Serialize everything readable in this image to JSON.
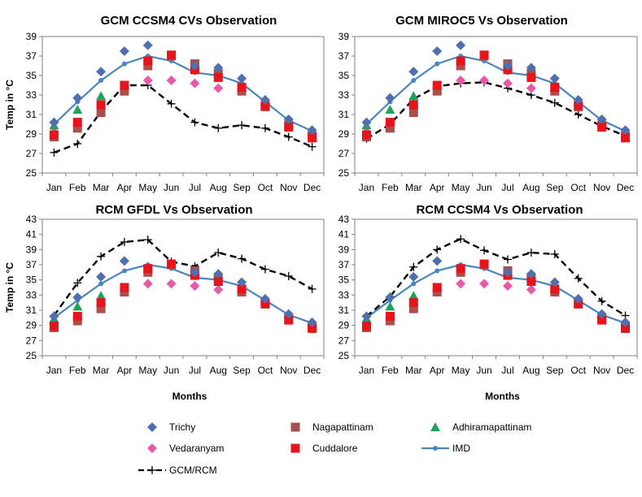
{
  "chart_data": [
    {
      "type": "line",
      "title": "GCM CCSM4  CVs Observation",
      "xlabel": "",
      "ylabel": "Temp in °C",
      "ylim": [
        25,
        39
      ],
      "yticks": [
        25,
        27,
        29,
        31,
        33,
        35,
        37,
        39
      ],
      "grid": false,
      "categories": [
        "Jan",
        "Feb",
        "Mar",
        "Apr",
        "May",
        "Jun",
        "Jul",
        "Aug",
        "Sep",
        "Oct",
        "Nov",
        "Dec"
      ],
      "series": [
        {
          "name": "Trichy",
          "values": [
            30.2,
            32.7,
            35.4,
            37.5,
            38.1,
            null,
            36.0,
            35.8,
            34.7,
            32.5,
            30.5,
            29.4
          ]
        },
        {
          "name": "Nagapattinam",
          "values": [
            28.7,
            29.6,
            31.2,
            33.4,
            36.0,
            37.0,
            36.2,
            35.2,
            33.4,
            31.8,
            29.9,
            28.8
          ]
        },
        {
          "name": "Adhiramapattinam",
          "values": [
            29.9,
            31.5,
            32.9,
            null,
            null,
            null,
            null,
            null,
            null,
            null,
            null,
            null
          ]
        },
        {
          "name": "Vedaranyam",
          "values": [
            29.2,
            30.0,
            31.8,
            33.6,
            34.5,
            34.5,
            34.2,
            33.7,
            33.5,
            32.0,
            30.0,
            29.0
          ]
        },
        {
          "name": "Cuddalore",
          "values": [
            28.9,
            30.2,
            32.0,
            34.0,
            36.5,
            37.1,
            35.6,
            34.8,
            33.8,
            31.9,
            29.7,
            28.6
          ]
        },
        {
          "name": "IMD",
          "values": [
            30.0,
            32.3,
            34.5,
            36.2,
            37.0,
            36.5,
            35.3,
            35.0,
            34.2,
            32.3,
            30.4,
            29.3
          ]
        },
        {
          "name": "GCM/RCM",
          "values": [
            27.1,
            28.0,
            31.3,
            34.0,
            34.0,
            32.1,
            30.2,
            29.6,
            29.9,
            29.6,
            28.7,
            27.7
          ]
        }
      ]
    },
    {
      "type": "line",
      "title": "GCM MIROC5 Vs Observation",
      "xlabel": "",
      "ylabel": "",
      "ylim": [
        25,
        39
      ],
      "yticks": [
        25,
        27,
        29,
        31,
        33,
        35,
        37,
        39
      ],
      "grid": false,
      "categories": [
        "Jan",
        "Feb",
        "Mar",
        "Apr",
        "May",
        "Jun",
        "Jul",
        "Aug",
        "Sep",
        "Oct",
        "Nov",
        "Dec"
      ],
      "series": [
        {
          "name": "Trichy",
          "values": [
            30.2,
            32.7,
            35.4,
            37.5,
            38.1,
            null,
            36.0,
            35.8,
            34.7,
            32.5,
            30.5,
            29.4
          ]
        },
        {
          "name": "Nagapattinam",
          "values": [
            28.7,
            29.6,
            31.2,
            33.4,
            36.0,
            37.0,
            36.2,
            35.2,
            33.4,
            31.8,
            29.9,
            28.8
          ]
        },
        {
          "name": "Adhiramapattinam",
          "values": [
            29.9,
            31.5,
            32.9,
            null,
            null,
            null,
            null,
            null,
            null,
            null,
            null,
            null
          ]
        },
        {
          "name": "Vedaranyam",
          "values": [
            29.2,
            30.0,
            31.8,
            33.6,
            34.5,
            34.5,
            34.2,
            33.7,
            33.5,
            32.0,
            30.0,
            29.0
          ]
        },
        {
          "name": "Cuddalore",
          "values": [
            28.9,
            30.2,
            32.0,
            34.0,
            36.5,
            37.1,
            35.6,
            34.8,
            33.8,
            31.9,
            29.7,
            28.6
          ]
        },
        {
          "name": "IMD",
          "values": [
            30.0,
            32.3,
            34.5,
            36.2,
            37.0,
            36.5,
            35.3,
            35.0,
            34.2,
            32.3,
            30.4,
            29.3
          ]
        },
        {
          "name": "GCM/RCM",
          "values": [
            28.5,
            30.0,
            32.6,
            33.9,
            34.2,
            34.3,
            33.7,
            33.0,
            32.2,
            31.0,
            29.8,
            28.8
          ]
        }
      ]
    },
    {
      "type": "line",
      "title": "RCM  GFDL Vs Observation",
      "xlabel": "Months",
      "ylabel": "Temp in °C",
      "ylim": [
        25,
        43
      ],
      "yticks": [
        25,
        27,
        29,
        31,
        33,
        35,
        37,
        39,
        41,
        43
      ],
      "grid": false,
      "categories": [
        "Jan",
        "Feb",
        "Mar",
        "Apr",
        "May",
        "Jun",
        "Jul",
        "Aug",
        "Sep",
        "Oct",
        "Nov",
        "Dec"
      ],
      "series": [
        {
          "name": "Trichy",
          "values": [
            30.2,
            32.7,
            35.4,
            37.5,
            null,
            null,
            36.0,
            35.8,
            34.7,
            32.5,
            30.5,
            29.4
          ]
        },
        {
          "name": "Nagapattinam",
          "values": [
            28.7,
            29.6,
            31.2,
            33.4,
            36.0,
            37.0,
            36.2,
            35.2,
            33.4,
            31.8,
            29.9,
            28.8
          ]
        },
        {
          "name": "Adhiramapattinam",
          "values": [
            29.9,
            31.5,
            32.9,
            null,
            null,
            null,
            null,
            null,
            null,
            null,
            null,
            null
          ]
        },
        {
          "name": "Vedaranyam",
          "values": [
            29.2,
            30.0,
            31.8,
            33.6,
            34.5,
            34.5,
            34.2,
            33.7,
            33.5,
            32.0,
            30.0,
            29.0
          ]
        },
        {
          "name": "Cuddalore",
          "values": [
            28.9,
            30.2,
            32.0,
            34.0,
            36.5,
            37.1,
            35.6,
            34.8,
            33.8,
            31.9,
            29.7,
            28.6
          ]
        },
        {
          "name": "IMD",
          "values": [
            30.0,
            32.3,
            34.5,
            36.2,
            37.0,
            36.5,
            35.3,
            35.0,
            34.2,
            32.3,
            30.4,
            29.3
          ]
        },
        {
          "name": "GCM/RCM",
          "values": [
            30.3,
            34.6,
            38.1,
            40.0,
            40.3,
            37.4,
            36.8,
            38.6,
            37.8,
            36.4,
            35.5,
            33.8
          ]
        }
      ]
    },
    {
      "type": "line",
      "title": "RCM  CCSM4 Vs Observation",
      "xlabel": "Months",
      "ylabel": "",
      "ylim": [
        25,
        43
      ],
      "yticks": [
        25,
        27,
        29,
        31,
        33,
        35,
        37,
        39,
        41,
        43
      ],
      "grid": false,
      "categories": [
        "Jan",
        "Feb",
        "Mar",
        "Apr",
        "May",
        "Jun",
        "Jul",
        "Aug",
        "Sep",
        "Oct",
        "Nov",
        "Dec"
      ],
      "series": [
        {
          "name": "Trichy",
          "values": [
            30.2,
            32.7,
            35.4,
            37.5,
            null,
            null,
            36.0,
            35.8,
            34.7,
            32.5,
            30.5,
            29.4
          ]
        },
        {
          "name": "Nagapattinam",
          "values": [
            28.7,
            29.6,
            31.2,
            33.4,
            36.0,
            37.0,
            36.2,
            35.2,
            33.4,
            31.8,
            29.9,
            28.8
          ]
        },
        {
          "name": "Adhiramapattinam",
          "values": [
            29.9,
            31.5,
            32.9,
            null,
            null,
            null,
            null,
            null,
            null,
            null,
            null,
            null
          ]
        },
        {
          "name": "Vedaranyam",
          "values": [
            29.2,
            30.0,
            31.8,
            33.6,
            34.5,
            34.5,
            34.2,
            33.7,
            33.5,
            32.0,
            30.0,
            29.0
          ]
        },
        {
          "name": "Cuddalore",
          "values": [
            28.9,
            30.2,
            32.0,
            34.0,
            36.5,
            37.1,
            35.6,
            34.8,
            33.8,
            31.9,
            29.7,
            28.6
          ]
        },
        {
          "name": "IMD",
          "values": [
            30.0,
            32.3,
            34.5,
            36.2,
            37.0,
            36.5,
            35.3,
            35.0,
            34.2,
            32.3,
            30.4,
            29.3
          ]
        },
        {
          "name": "GCM/RCM",
          "values": [
            30.2,
            32.8,
            36.7,
            39.0,
            40.4,
            38.9,
            37.7,
            38.6,
            38.4,
            35.2,
            32.2,
            30.3
          ]
        }
      ]
    }
  ],
  "legend": [
    {
      "label": "Trichy",
      "marker": "diamond",
      "color": "#4F6FAE"
    },
    {
      "label": "Nagapattinam",
      "marker": "square",
      "color": "#A6514E"
    },
    {
      "label": "Adhiramapattinam",
      "marker": "triangle",
      "color": "#1FA35B"
    },
    {
      "label": "Vedaranyam",
      "marker": "diamond",
      "color": "#E75AA8"
    },
    {
      "label": "Cuddalore",
      "marker": "square",
      "color": "#E8141B"
    },
    {
      "label": "IMD",
      "marker": "line-dot",
      "color": "#4A86BE"
    },
    {
      "label": "GCM/RCM",
      "marker": "dash-plus",
      "color": "#000000"
    }
  ]
}
